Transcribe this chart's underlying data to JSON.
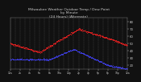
{
  "title": "Milwaukee Weather Outdoor Temp / Dew Point\nby Minute\n(24 Hours) (Alternate)",
  "title_fontsize": 3.2,
  "background_color": "#111111",
  "plot_bg_color": "#111111",
  "temp_color": "#ff2222",
  "dew_color": "#4444ff",
  "grid_color": "#888888",
  "text_color": "#cccccc",
  "ylim": [
    15,
    85
  ],
  "xlim": [
    0,
    1440
  ],
  "yticks": [
    20,
    30,
    40,
    50,
    60,
    70,
    80
  ],
  "ylabel_fontsize": 2.8,
  "xlabel_fontsize": 2.2
}
